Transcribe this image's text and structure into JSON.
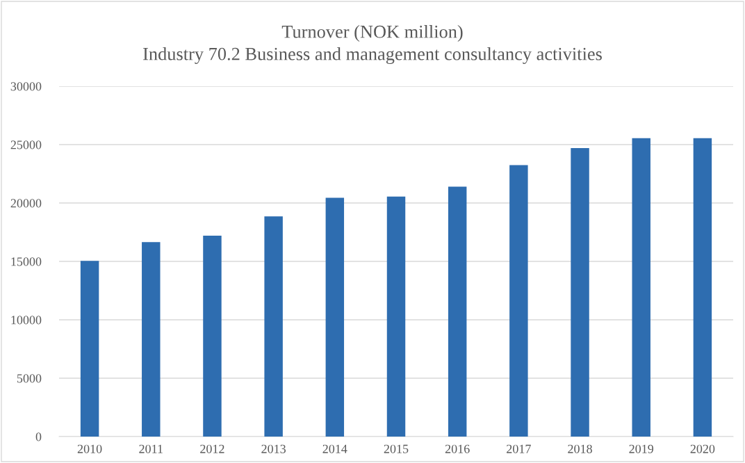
{
  "chart_data": {
    "type": "bar",
    "title": "Turnover (NOK million)",
    "subtitle": "Industry 70.2 Business and management consultancy activities",
    "categories": [
      "2010",
      "2011",
      "2012",
      "2013",
      "2014",
      "2015",
      "2016",
      "2017",
      "2018",
      "2019",
      "2020"
    ],
    "values": [
      15050,
      16650,
      17200,
      18850,
      20450,
      20550,
      21400,
      23250,
      24700,
      25550,
      25550
    ],
    "color": "#2e6db0",
    "ylim": [
      0,
      30000
    ],
    "yticks": [
      0,
      5000,
      10000,
      15000,
      20000,
      25000,
      30000
    ],
    "grid": "y",
    "legend": false
  }
}
